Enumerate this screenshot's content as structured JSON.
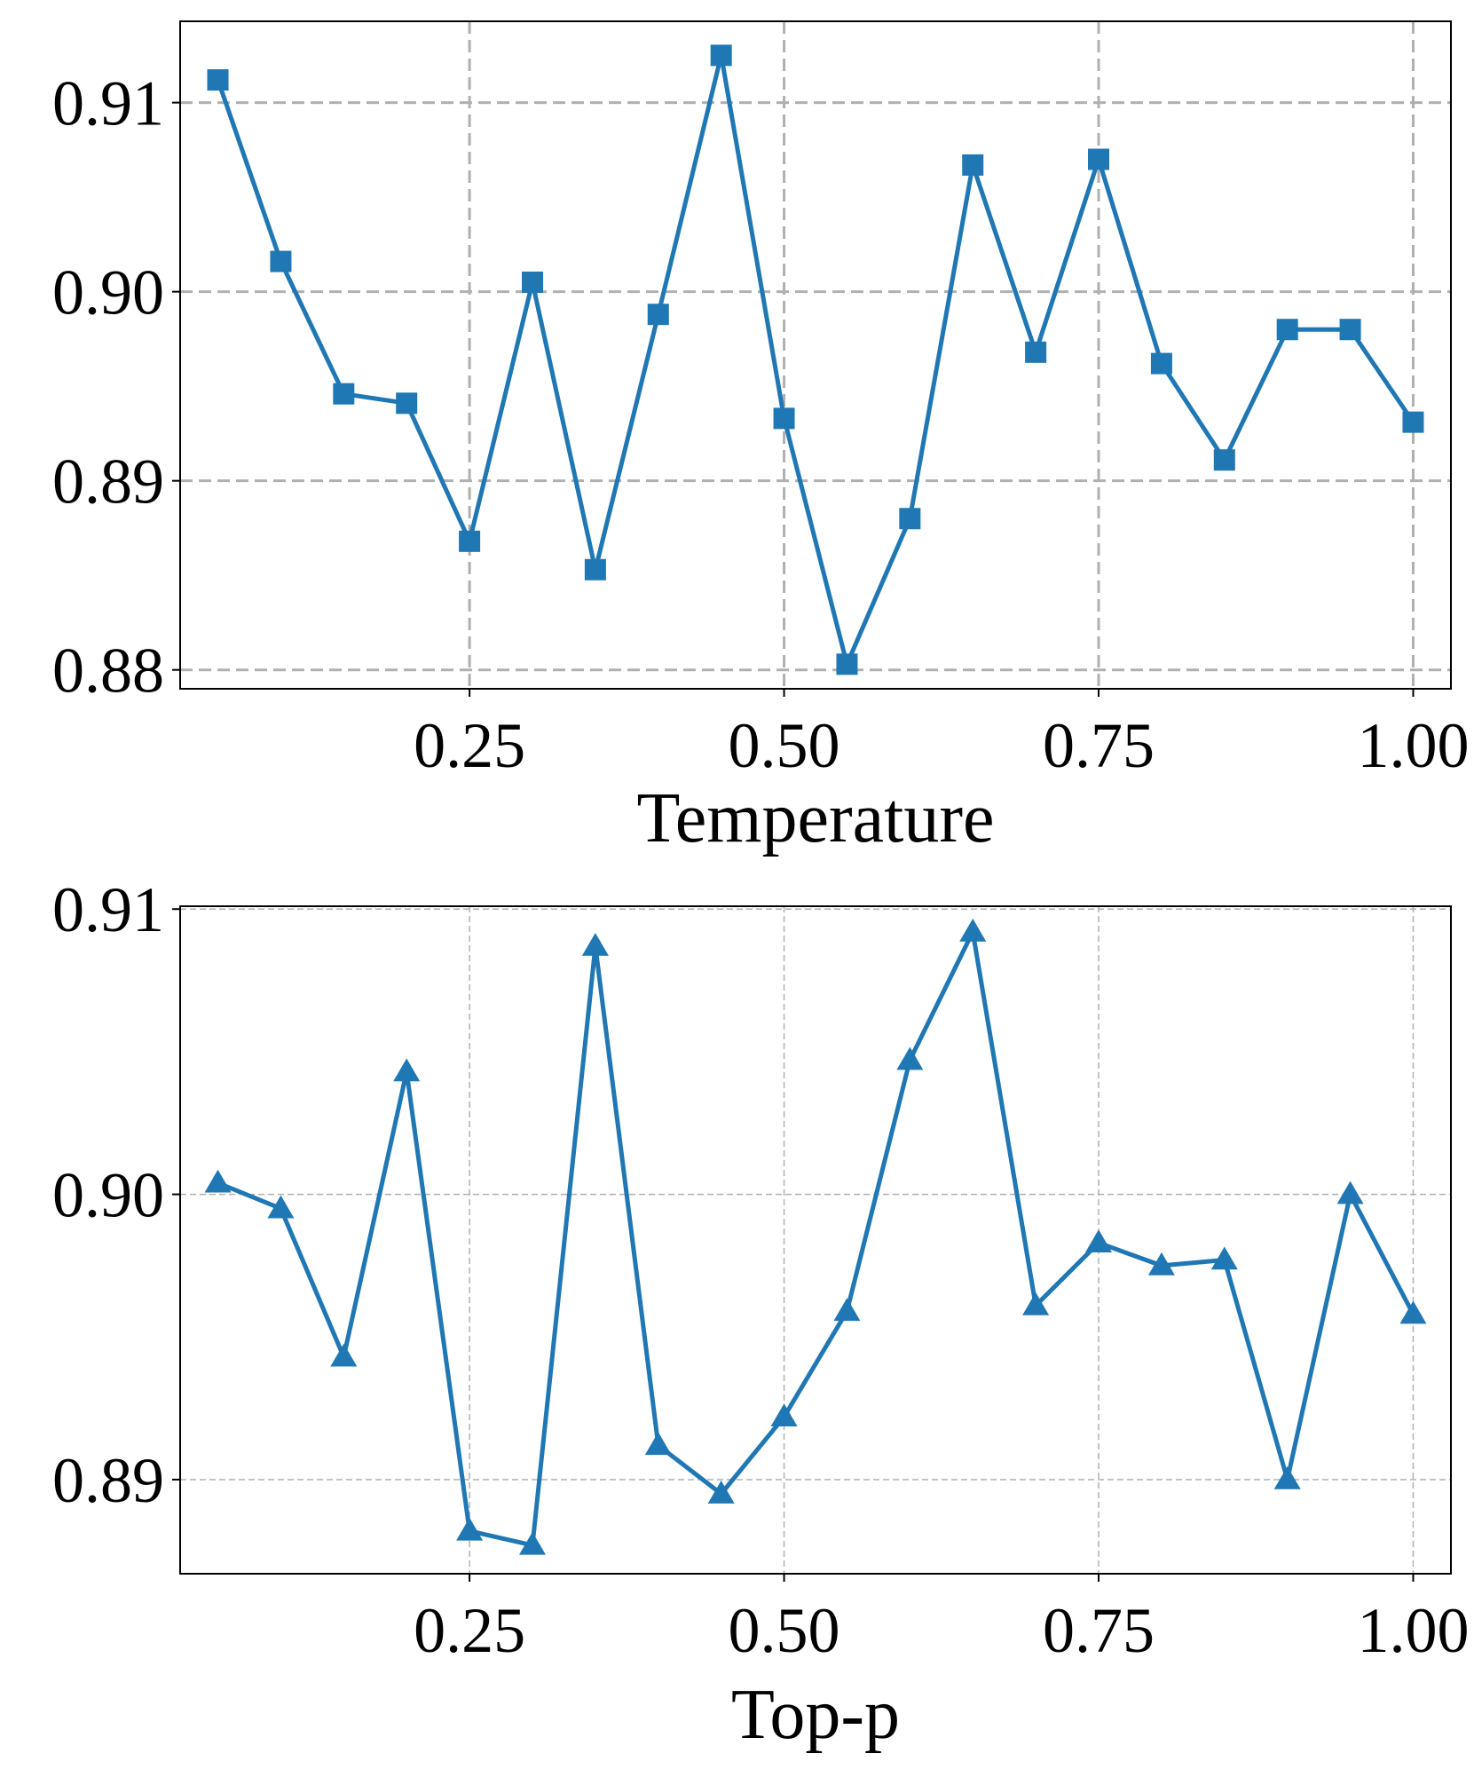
{
  "chart_data": [
    {
      "type": "line",
      "title": "",
      "xlabel": "Temperature",
      "ylabel": "",
      "marker": "square",
      "color": "#1f77b4",
      "grid": true,
      "xlim": [
        0.02,
        1.03
      ],
      "ylim": [
        0.879,
        0.9143
      ],
      "xticks": [
        0.25,
        0.5,
        0.75,
        1.0
      ],
      "xtick_labels": [
        "0.25",
        "0.50",
        "0.75",
        "1.00"
      ],
      "yticks": [
        0.88,
        0.89,
        0.9,
        0.91
      ],
      "ytick_labels": [
        "0.88",
        "0.89",
        "0.90",
        "0.91"
      ],
      "series": [
        {
          "x": [
            0.05,
            0.1,
            0.15,
            0.2,
            0.25,
            0.3,
            0.35,
            0.4,
            0.45,
            0.5,
            0.55,
            0.6,
            0.65,
            0.7,
            0.75,
            0.8,
            0.85,
            0.9,
            0.95,
            1.0
          ],
          "values": [
            0.9112,
            0.9016,
            0.8946,
            0.8941,
            0.8868,
            0.9005,
            0.8853,
            0.8988,
            0.9125,
            0.8933,
            0.8803,
            0.888,
            0.9067,
            0.8968,
            0.907,
            0.8962,
            0.8911,
            0.898,
            0.898,
            0.8931
          ]
        }
      ]
    },
    {
      "type": "line",
      "title": "",
      "xlabel": "Top-p",
      "ylabel": "",
      "marker": "triangle",
      "color": "#1f77b4",
      "grid": true,
      "xlim": [
        0.02,
        1.03
      ],
      "ylim": [
        0.8867,
        0.9101
      ],
      "xticks": [
        0.25,
        0.5,
        0.75,
        1.0
      ],
      "xtick_labels": [
        "0.25",
        "0.50",
        "0.75",
        "1.00"
      ],
      "yticks": [
        0.89,
        0.9,
        0.91
      ],
      "ytick_labels": [
        "0.89",
        "0.90",
        "0.91"
      ],
      "series": [
        {
          "x": [
            0.05,
            0.1,
            0.15,
            0.2,
            0.25,
            0.3,
            0.35,
            0.4,
            0.45,
            0.5,
            0.55,
            0.6,
            0.65,
            0.7,
            0.75,
            0.8,
            0.85,
            0.9,
            0.95,
            1.0
          ],
          "values": [
            0.9004,
            0.8995,
            0.8943,
            0.9043,
            0.8882,
            0.8877,
            0.9087,
            0.8912,
            0.8895,
            0.8922,
            0.8959,
            0.9047,
            0.9092,
            0.8961,
            0.8983,
            0.8975,
            0.8977,
            0.89,
            0.9,
            0.8958
          ]
        }
      ]
    }
  ]
}
